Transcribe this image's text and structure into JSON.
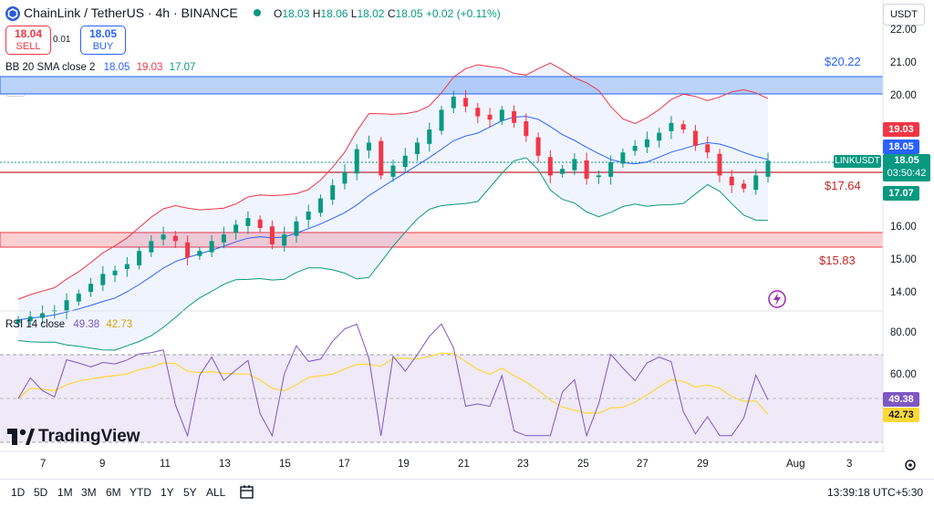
{
  "header": {
    "symbol_title": "ChainLink / TetherUS · 4h · BINANCE",
    "ohlc": {
      "o_label": "O",
      "o": "18.03",
      "h_label": "H",
      "h": "18.06",
      "l_label": "L",
      "l": "18.02",
      "c_label": "C",
      "c": "18.05",
      "change": "+0.02 (+0.11%)"
    },
    "currency": "USDT"
  },
  "trade": {
    "sell_price": "18.04",
    "sell_label": "SELL",
    "spread": "0.01",
    "buy_price": "18.05",
    "buy_label": "BUY"
  },
  "indicators": {
    "bb": {
      "name": "BB 20 SMA close 2",
      "basis": "18.05",
      "upper": "19.03",
      "lower": "17.07"
    },
    "rsi": {
      "name": "RSI 14 close",
      "value": "49.38",
      "ma": "42.73"
    }
  },
  "price_axis": {
    "ticks": [
      "22.00",
      "21.00",
      "20.00",
      "19.00",
      "18.00",
      "17.00",
      "16.00",
      "15.00",
      "14.00"
    ],
    "tags": {
      "upper": "19.03",
      "basis": "18.05",
      "symbol": "LINKUSDT",
      "last": "18.05",
      "countdown": "03:50:42",
      "lower": "17.07"
    }
  },
  "zones": {
    "resistance_label": "$20.22",
    "pivot_label": "$17.64",
    "support_label": "$15.83"
  },
  "rsi_axis": {
    "ticks": [
      "80.00",
      "60.00",
      "40.00"
    ],
    "tag_value": "49.38",
    "tag_ma": "42.73"
  },
  "time_axis": {
    "ticks": [
      "7",
      "9",
      "11",
      "13",
      "15",
      "17",
      "19",
      "21",
      "23",
      "25",
      "27",
      "29",
      "Aug",
      "3"
    ]
  },
  "footer": {
    "ranges": [
      "1D",
      "5D",
      "1M",
      "3M",
      "6M",
      "YTD",
      "1Y",
      "5Y",
      "ALL"
    ],
    "clock": "13:39:18 UTC+5:30"
  },
  "branding": {
    "logo_text": "TradingView"
  },
  "colors": {
    "up": "#089981",
    "down": "#f23645",
    "bb_basis": "#2962ff",
    "bb_upper": "#f23645",
    "bb_lower": "#089981",
    "rsi": "#7e57c2",
    "rsi_ma": "#fdd835"
  },
  "chart_data": [
    {
      "type": "candlestick",
      "title": "ChainLink / TetherUS · 4h · BINANCE",
      "ylim": [
        13.5,
        22.3
      ],
      "x_ticks": [
        "7",
        "9",
        "11",
        "13",
        "15",
        "17",
        "19",
        "21",
        "23",
        "25",
        "27",
        "29",
        "Aug",
        "3"
      ],
      "closes": [
        13.2,
        13.3,
        13.4,
        13.5,
        13.8,
        14.0,
        14.3,
        14.6,
        14.7,
        14.9,
        15.3,
        15.6,
        15.8,
        15.6,
        15.1,
        15.3,
        15.6,
        15.8,
        16.1,
        16.3,
        16.0,
        15.5,
        15.8,
        16.2,
        16.5,
        16.9,
        17.3,
        17.7,
        18.4,
        18.6,
        17.6,
        17.9,
        18.2,
        18.6,
        19.0,
        19.6,
        20.0,
        19.7,
        19.4,
        19.3,
        19.6,
        19.2,
        18.8,
        18.2,
        17.6,
        17.8,
        18.1,
        17.5,
        17.6,
        18.0,
        18.3,
        18.5,
        18.7,
        18.9,
        19.2,
        19.0,
        18.5,
        18.3,
        17.6,
        17.3,
        17.2,
        17.6,
        18.05
      ],
      "annotations": [
        "$20.22",
        "$17.64",
        "$15.83"
      ]
    },
    {
      "type": "line",
      "title": "RSI 14 close",
      "series": [
        {
          "name": "RSI",
          "value_last": 49.38
        },
        {
          "name": "MA",
          "value_last": 42.73
        }
      ],
      "ylim": [
        30,
        90
      ]
    }
  ]
}
